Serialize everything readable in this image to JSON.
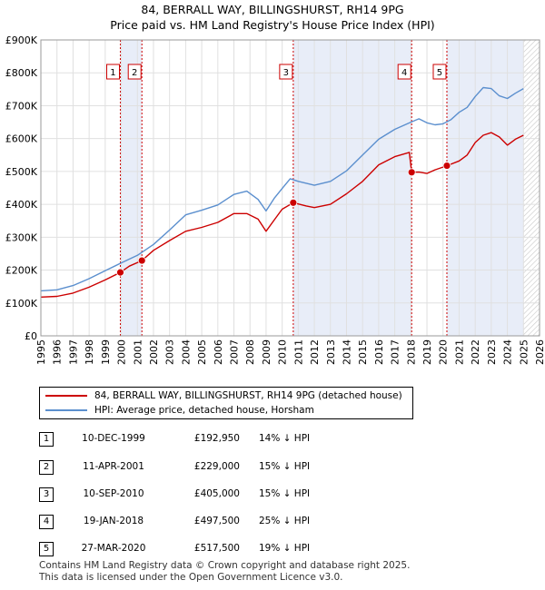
{
  "title_line1": "84, BERRALL WAY, BILLINGSHURST, RH14 9PG",
  "title_line2": "Price paid vs. HM Land Registry's House Price Index (HPI)",
  "chart_data": {
    "type": "line",
    "x_range": [
      1995,
      2026
    ],
    "ylim": [
      0,
      900000
    ],
    "y_ticks": [
      0,
      100000,
      200000,
      300000,
      400000,
      500000,
      600000,
      700000,
      800000,
      900000
    ],
    "y_tick_labels": [
      "£0",
      "£100K",
      "£200K",
      "£300K",
      "£400K",
      "£500K",
      "£600K",
      "£700K",
      "£800K",
      "£900K"
    ],
    "x_ticks": [
      1995,
      1996,
      1997,
      1998,
      1999,
      2000,
      2001,
      2002,
      2003,
      2004,
      2005,
      2006,
      2007,
      2008,
      2009,
      2010,
      2011,
      2012,
      2013,
      2014,
      2015,
      2016,
      2017,
      2018,
      2019,
      2020,
      2021,
      2022,
      2023,
      2024,
      2025,
      2026
    ],
    "x_tick_labels": [
      "1995",
      "1996",
      "1997",
      "1998",
      "1999",
      "2000",
      "2001",
      "2002",
      "2003",
      "2004",
      "2005",
      "2006",
      "2007",
      "2008",
      "2009",
      "2010",
      "2011",
      "2012",
      "2013",
      "2014",
      "2015",
      "2016",
      "2017",
      "2018",
      "2019",
      "2020",
      "2021",
      "2022",
      "2023",
      "2024",
      "2025",
      "2026"
    ],
    "data_end_year": 2025.0,
    "shaded_spans": [
      [
        1999.94,
        2001.28
      ],
      [
        2010.69,
        2018.05
      ],
      [
        2020.24,
        2025.0
      ]
    ],
    "series": [
      {
        "name": "84, BERRALL WAY, BILLINGSHURST, RH14 9PG (detached house)",
        "color": "#cc0000",
        "points": [
          [
            1995.0,
            118000
          ],
          [
            1996.0,
            120000
          ],
          [
            1997.0,
            130000
          ],
          [
            1998.0,
            148000
          ],
          [
            1999.0,
            170000
          ],
          [
            1999.94,
            192950
          ],
          [
            2000.5,
            212000
          ],
          [
            2001.28,
            229000
          ],
          [
            2002.0,
            260000
          ],
          [
            2003.0,
            290000
          ],
          [
            2004.0,
            318000
          ],
          [
            2005.0,
            330000
          ],
          [
            2006.0,
            345000
          ],
          [
            2007.0,
            372000
          ],
          [
            2007.8,
            372000
          ],
          [
            2008.5,
            355000
          ],
          [
            2009.0,
            318000
          ],
          [
            2009.5,
            352000
          ],
          [
            2010.0,
            385000
          ],
          [
            2010.69,
            405000
          ],
          [
            2011.5,
            395000
          ],
          [
            2012.0,
            390000
          ],
          [
            2013.0,
            400000
          ],
          [
            2014.0,
            432000
          ],
          [
            2015.0,
            470000
          ],
          [
            2016.0,
            520000
          ],
          [
            2017.0,
            545000
          ],
          [
            2017.9,
            558000
          ],
          [
            2018.05,
            497500
          ],
          [
            2018.5,
            498000
          ],
          [
            2019.0,
            494000
          ],
          [
            2019.5,
            505000
          ],
          [
            2020.24,
            517500
          ],
          [
            2021.0,
            532000
          ],
          [
            2021.5,
            550000
          ],
          [
            2022.0,
            588000
          ],
          [
            2022.5,
            610000
          ],
          [
            2023.0,
            618000
          ],
          [
            2023.5,
            605000
          ],
          [
            2024.0,
            580000
          ],
          [
            2024.5,
            598000
          ],
          [
            2025.0,
            610000
          ]
        ]
      },
      {
        "name": "HPI: Average price, detached house, Horsham",
        "color": "#5b8fce",
        "points": [
          [
            1995.0,
            137000
          ],
          [
            1996.0,
            140000
          ],
          [
            1997.0,
            153000
          ],
          [
            1998.0,
            174000
          ],
          [
            1999.0,
            198000
          ],
          [
            2000.0,
            222000
          ],
          [
            2001.0,
            245000
          ],
          [
            2002.0,
            278000
          ],
          [
            2003.0,
            322000
          ],
          [
            2004.0,
            368000
          ],
          [
            2005.0,
            382000
          ],
          [
            2006.0,
            398000
          ],
          [
            2007.0,
            430000
          ],
          [
            2007.8,
            440000
          ],
          [
            2008.5,
            415000
          ],
          [
            2009.0,
            380000
          ],
          [
            2009.5,
            418000
          ],
          [
            2010.0,
            448000
          ],
          [
            2010.5,
            478000
          ],
          [
            2011.0,
            470000
          ],
          [
            2012.0,
            458000
          ],
          [
            2013.0,
            470000
          ],
          [
            2014.0,
            502000
          ],
          [
            2015.0,
            550000
          ],
          [
            2016.0,
            598000
          ],
          [
            2017.0,
            628000
          ],
          [
            2018.0,
            650000
          ],
          [
            2018.5,
            660000
          ],
          [
            2019.0,
            648000
          ],
          [
            2019.5,
            642000
          ],
          [
            2020.0,
            645000
          ],
          [
            2020.5,
            658000
          ],
          [
            2021.0,
            680000
          ],
          [
            2021.5,
            695000
          ],
          [
            2022.0,
            728000
          ],
          [
            2022.5,
            755000
          ],
          [
            2023.0,
            752000
          ],
          [
            2023.5,
            730000
          ],
          [
            2024.0,
            722000
          ],
          [
            2024.5,
            738000
          ],
          [
            2025.0,
            752000
          ]
        ]
      }
    ],
    "sales": [
      {
        "label": "1",
        "x": 1999.94,
        "price": 192950
      },
      {
        "label": "2",
        "x": 2001.28,
        "price": 229000
      },
      {
        "label": "3",
        "x": 2010.69,
        "price": 405000
      },
      {
        "label": "4",
        "x": 2018.05,
        "price": 497500
      },
      {
        "label": "5",
        "x": 2020.24,
        "price": 517500
      }
    ]
  },
  "legend": {
    "items": [
      {
        "label": "84, BERRALL WAY, BILLINGSHURST, RH14 9PG (detached house)",
        "color": "#cc0000"
      },
      {
        "label": "HPI: Average price, detached house, Horsham",
        "color": "#5b8fce"
      }
    ]
  },
  "transactions": [
    {
      "num": "1",
      "date": "10-DEC-1999",
      "price": "£192,950",
      "hpi": "14% ↓ HPI"
    },
    {
      "num": "2",
      "date": "11-APR-2001",
      "price": "£229,000",
      "hpi": "15% ↓ HPI"
    },
    {
      "num": "3",
      "date": "10-SEP-2010",
      "price": "£405,000",
      "hpi": "15% ↓ HPI"
    },
    {
      "num": "4",
      "date": "19-JAN-2018",
      "price": "£497,500",
      "hpi": "25% ↓ HPI"
    },
    {
      "num": "5",
      "date": "27-MAR-2020",
      "price": "£517,500",
      "hpi": "19% ↓ HPI"
    }
  ],
  "footer": {
    "line1": "Contains HM Land Registry data © Crown copyright and database right 2025.",
    "line2": "This data is licensed under the Open Government Licence v3.0."
  }
}
